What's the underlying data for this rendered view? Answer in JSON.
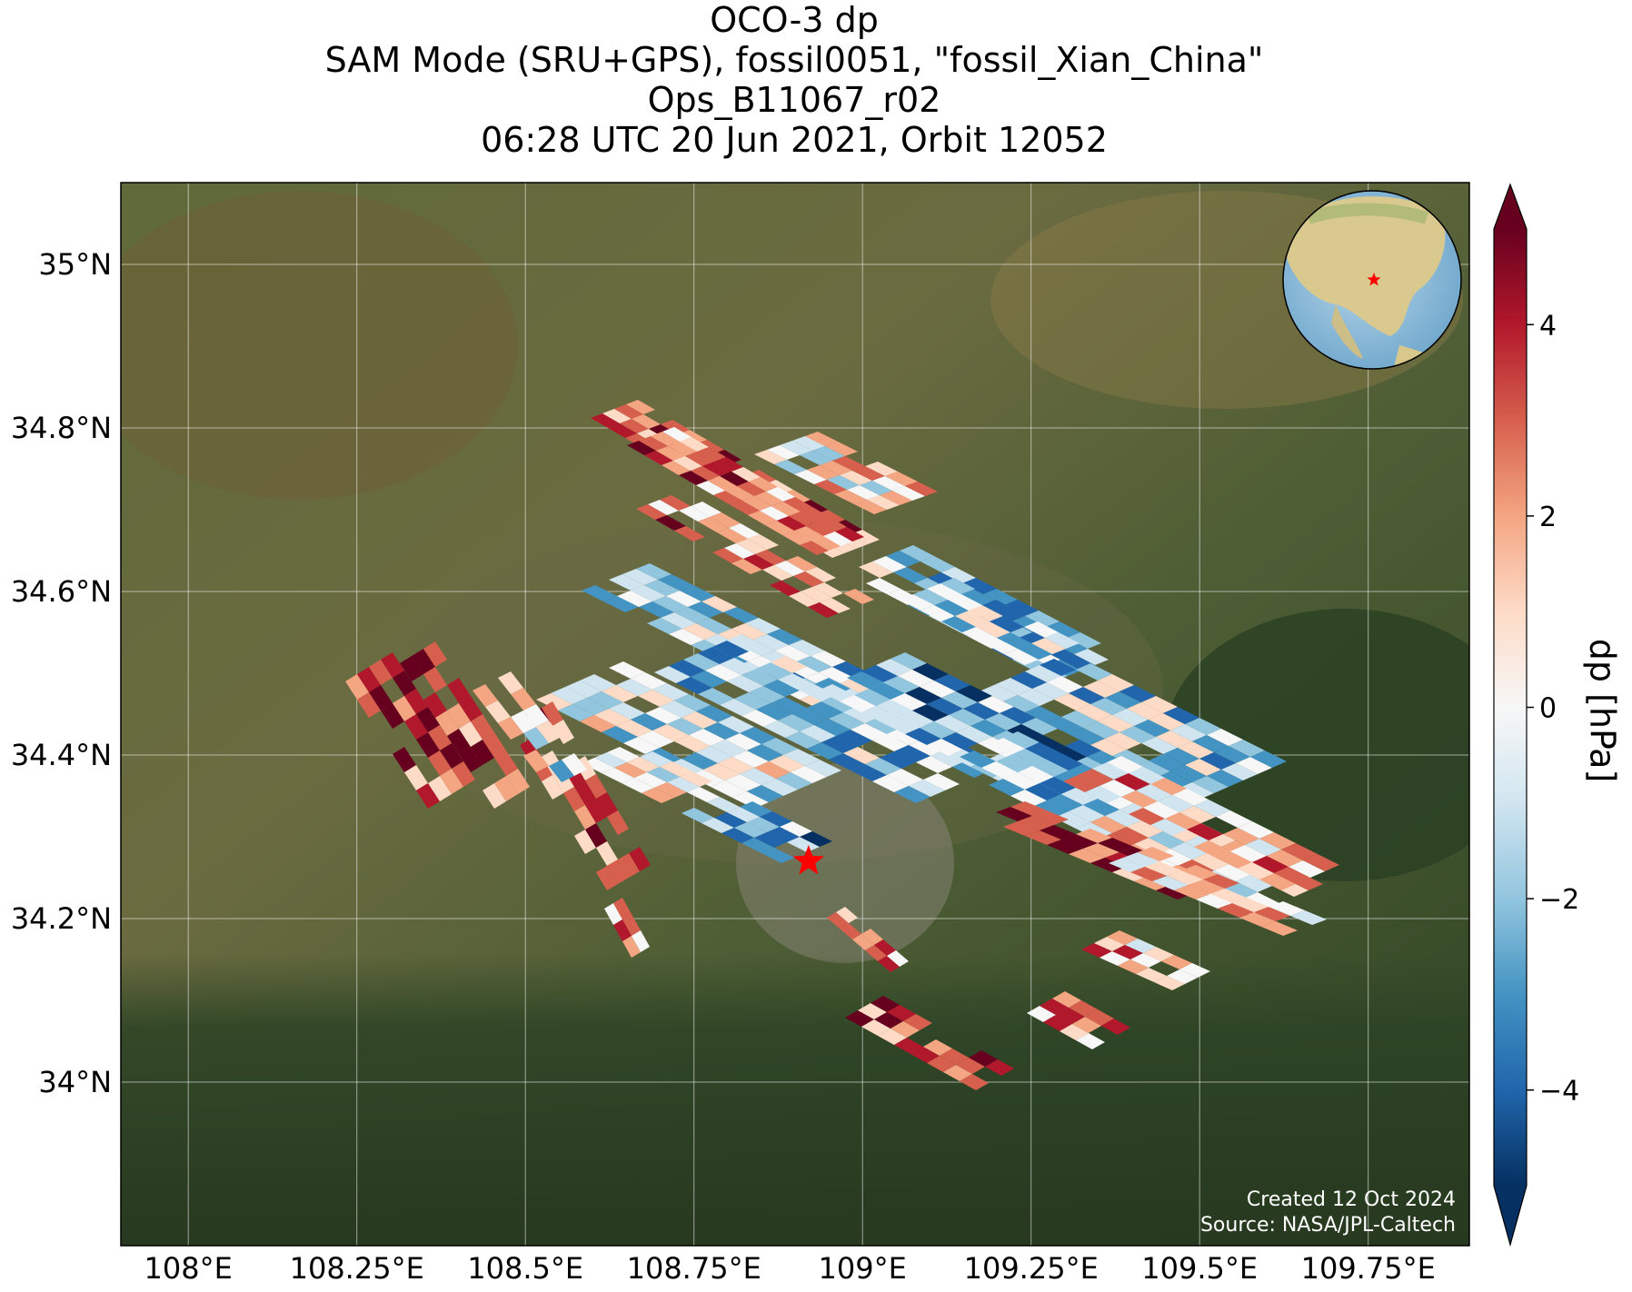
{
  "title": {
    "line1": "OCO-3 dp",
    "line2": "SAM Mode (SRU+GPS), fossil0051, \"fossil_Xian_China\"",
    "line3": "Ops_B11067_r02",
    "line4": "06:28 UTC 20 Jun 2021, Orbit 12052"
  },
  "map": {
    "lon_range": [
      107.9,
      109.9
    ],
    "lat_range": [
      33.8,
      35.1
    ],
    "lon_ticks": [
      "108°E",
      "108.25°E",
      "108.5°E",
      "108.75°E",
      "109°E",
      "109.25°E",
      "109.5°E",
      "109.75°E"
    ],
    "lat_ticks": [
      "34°N",
      "34.2°N",
      "34.4°N",
      "34.6°N",
      "34.8°N",
      "35°N"
    ],
    "target": {
      "name": "fossil_Xian_China",
      "lon": 108.92,
      "lat": 34.27,
      "marker": "red-star"
    },
    "background": "satellite imagery",
    "inset_globe": {
      "marker": "red-star"
    }
  },
  "colorbar": {
    "label": "dp [hPa]",
    "ticks": [
      "4",
      "2",
      "0",
      "−2",
      "−4"
    ],
    "range": [
      -5,
      5
    ],
    "colormap": "RdBu_r"
  },
  "credits": {
    "created": "Created 12 Oct 2024",
    "source": "Source: NASA/JPL-Caltech"
  },
  "colors": {
    "deep_red": "#67001f",
    "red": "#b2182b",
    "salmon": "#d6604d",
    "peach": "#f4a582",
    "light_pink": "#fddbc7",
    "white": "#f7f7f7",
    "light_blue": "#d1e5f0",
    "sky_blue": "#92c5de",
    "blue": "#4393c3",
    "mid_blue": "#2166ac",
    "deep_blue": "#053061"
  }
}
